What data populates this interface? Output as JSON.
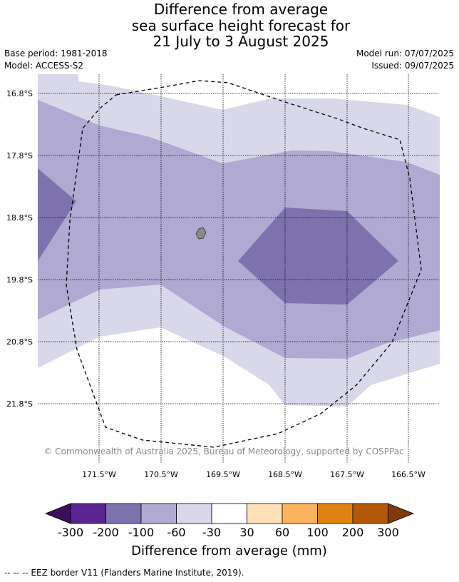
{
  "title": {
    "line1": "Difference from average",
    "line2": "sea surface height forecast for",
    "line3": "21 July to 3 August 2025"
  },
  "meta": {
    "base_period": "Base period: 1981-2018",
    "model": "Model: ACCESS-S2",
    "model_run": "Model run: 07/07/2025",
    "issued": "Issued: 09/07/2025"
  },
  "map": {
    "lat_labels": [
      "16.8°S",
      "17.8°S",
      "18.8°S",
      "19.8°S",
      "20.8°S",
      "21.8°S"
    ],
    "lon_labels": [
      "171.5°W",
      "170.5°W",
      "169.5°W",
      "168.5°W",
      "167.5°W",
      "166.5°W"
    ],
    "copyright": "© Commonwealth of Australia 2025, Bureau of Meteorology, supported by COSPPac",
    "colors": {
      "c_m100": "#7e72ae",
      "c_m60": "#b0a9d1",
      "c_m30": "#d8d8ea",
      "land": "#8a8a8a"
    }
  },
  "colorbar": {
    "ticks": [
      "-300",
      "-200",
      "-100",
      "-60",
      "-30",
      "30",
      "60",
      "100",
      "200",
      "300"
    ],
    "colors": [
      "#3b0f5b",
      "#5a2591",
      "#7e72ae",
      "#b0a9d1",
      "#d8d8ea",
      "#ffffff",
      "#fde0b8",
      "#fbb45e",
      "#e08212",
      "#b35806",
      "#7f3b08"
    ],
    "label": "Difference from average (mm)"
  },
  "footnote": "--  --  -- EEZ border V11 (Flanders Marine Institute, 2019)."
}
